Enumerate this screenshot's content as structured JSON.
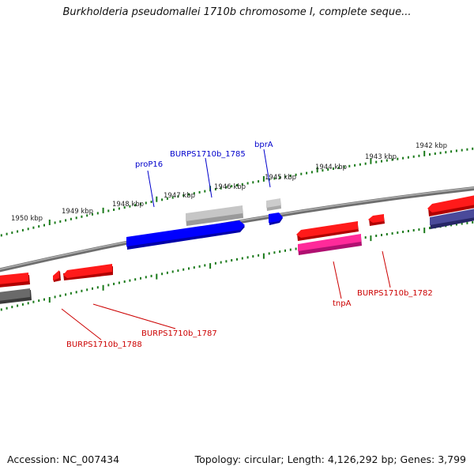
{
  "title": "Burkholderia pseudomallei 1710b chromosome I, complete seque...",
  "footer": {
    "accession": "Accession: NC_007434",
    "summary": "Topology: circular; Length: 4,126,292 bp; Genes: 3,799"
  },
  "colors": {
    "scale_ticks": "#1a7a1a",
    "backbone": "#7a7a7a",
    "gene_label_blue": "#0000cc",
    "gene_label_red": "#cc0000",
    "feature_red": "#ff0000",
    "feature_blue": "#0000ff",
    "feature_grey": "#b4b4b4",
    "feature_darkgrey": "#5a5a5a",
    "feature_pink": "#ff2a9a",
    "feature_navy": "#3a3a8a"
  },
  "scale_labels": [
    "1950 kbp",
    "1949 kbp",
    "1948 kbp",
    "1947 kbp",
    "1946 kbp",
    "1945 kbp",
    "1944 kbp",
    "1943 kbp",
    "1942 kbp"
  ],
  "gene_labels": {
    "proP16": "proP16",
    "burps_1785": "BURPS1710b_1785",
    "bprA": "bprA",
    "burps_1788": "BURPS1710b_1788",
    "burps_1787": "BURPS1710b_1787",
    "tnpA": "tnpA",
    "burps_1782": "BURPS1710b_1782"
  }
}
